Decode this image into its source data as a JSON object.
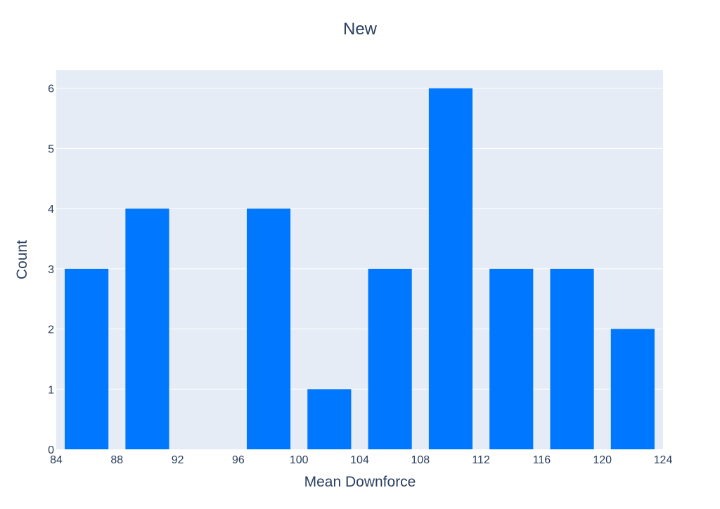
{
  "chart_data": {
    "type": "bar",
    "title": "New",
    "xlabel": "Mean Downforce",
    "ylabel": "Count",
    "bin_size": 4,
    "bins": [
      {
        "start": 84,
        "end": 88,
        "count": 3
      },
      {
        "start": 88,
        "end": 92,
        "count": 4
      },
      {
        "start": 92,
        "end": 96,
        "count": 0
      },
      {
        "start": 96,
        "end": 100,
        "count": 4
      },
      {
        "start": 100,
        "end": 104,
        "count": 1
      },
      {
        "start": 104,
        "end": 108,
        "count": 3
      },
      {
        "start": 108,
        "end": 112,
        "count": 6
      },
      {
        "start": 112,
        "end": 116,
        "count": 3
      },
      {
        "start": 116,
        "end": 120,
        "count": 3
      },
      {
        "start": 120,
        "end": 124,
        "count": 2
      }
    ],
    "xlim": [
      84,
      124
    ],
    "ylim": [
      0,
      6.3
    ],
    "x_ticks": [
      "84",
      "88",
      "92",
      "96",
      "100",
      "104",
      "108",
      "112",
      "116",
      "120",
      "124"
    ],
    "y_ticks": [
      "0",
      "1",
      "2",
      "3",
      "4",
      "5",
      "6"
    ],
    "grid": true,
    "colors": {
      "bar": "#0077ff",
      "plot_background": "#e5ecf6",
      "grid": "#ffffff",
      "text": "#2a3f5f"
    }
  }
}
